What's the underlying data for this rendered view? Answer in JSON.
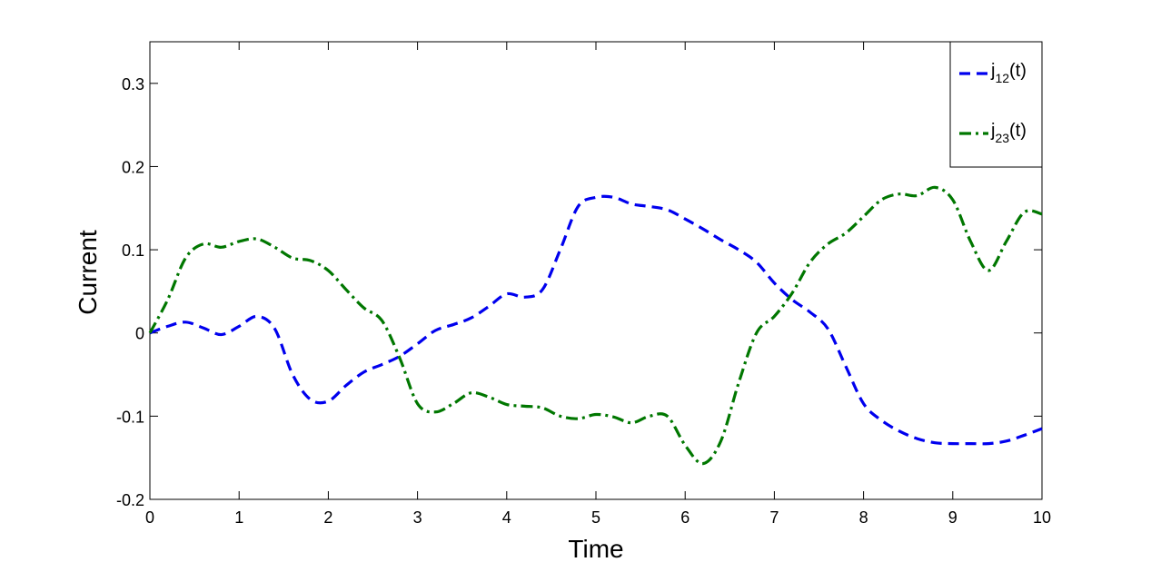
{
  "chart_data": {
    "type": "line",
    "title": "",
    "xlabel": "Time",
    "ylabel": "Current",
    "xlim": [
      0,
      10
    ],
    "ylim": [
      -0.2,
      0.35
    ],
    "xticks": [
      0,
      1,
      2,
      3,
      4,
      5,
      6,
      7,
      8,
      9,
      10
    ],
    "xtick_labels": [
      "0",
      "1",
      "2",
      "3",
      "4",
      "5",
      "6",
      "7",
      "8",
      "9",
      "10"
    ],
    "yticks": [
      -0.2,
      -0.1,
      0,
      0.1,
      0.2,
      0.3
    ],
    "ytick_labels": [
      "-0.2",
      "-0.1",
      "0",
      "0.1",
      "0.2",
      "0.3"
    ],
    "grid": false,
    "legend_position": "top-right",
    "series": [
      {
        "name": "j12(t)",
        "legend_main": "j",
        "legend_sub": "12",
        "legend_suffix": "(t)",
        "color": "#0000ee",
        "dash": "dashed",
        "x": [
          0,
          0.2,
          0.4,
          0.6,
          0.8,
          1.0,
          1.2,
          1.4,
          1.6,
          1.8,
          2.0,
          2.2,
          2.4,
          2.6,
          2.8,
          3.0,
          3.2,
          3.4,
          3.6,
          3.8,
          4.0,
          4.2,
          4.4,
          4.6,
          4.8,
          5.0,
          5.2,
          5.4,
          5.6,
          5.8,
          6.0,
          6.2,
          6.4,
          6.6,
          6.8,
          7.0,
          7.2,
          7.4,
          7.6,
          7.8,
          8.0,
          8.2,
          8.4,
          8.6,
          8.8,
          9.0,
          9.2,
          9.4,
          9.6,
          9.8,
          10.0
        ],
        "y": [
          0.0,
          0.008,
          0.013,
          0.006,
          -0.002,
          0.008,
          0.02,
          0.005,
          -0.05,
          -0.08,
          -0.082,
          -0.063,
          -0.047,
          -0.038,
          -0.028,
          -0.013,
          0.003,
          0.01,
          0.018,
          0.032,
          0.047,
          0.043,
          0.052,
          0.1,
          0.152,
          0.163,
          0.163,
          0.155,
          0.152,
          0.148,
          0.137,
          0.125,
          0.112,
          0.1,
          0.085,
          0.06,
          0.04,
          0.025,
          0.005,
          -0.04,
          -0.085,
          -0.105,
          -0.118,
          -0.127,
          -0.132,
          -0.133,
          -0.133,
          -0.133,
          -0.13,
          -0.123,
          -0.115
        ]
      },
      {
        "name": "j23(t)",
        "legend_main": "j",
        "legend_sub": "23",
        "legend_suffix": "(t)",
        "color": "#007700",
        "dash": "dash-dot",
        "x": [
          0,
          0.2,
          0.4,
          0.6,
          0.8,
          1.0,
          1.2,
          1.4,
          1.6,
          1.8,
          2.0,
          2.2,
          2.4,
          2.6,
          2.8,
          3.0,
          3.2,
          3.4,
          3.6,
          3.8,
          4.0,
          4.2,
          4.4,
          4.6,
          4.8,
          5.0,
          5.2,
          5.4,
          5.6,
          5.8,
          6.0,
          6.2,
          6.4,
          6.6,
          6.8,
          7.0,
          7.2,
          7.4,
          7.6,
          7.8,
          8.0,
          8.2,
          8.4,
          8.6,
          8.8,
          9.0,
          9.2,
          9.4,
          9.6,
          9.8,
          10.0
        ],
        "y": [
          0.0,
          0.04,
          0.09,
          0.107,
          0.103,
          0.11,
          0.113,
          0.103,
          0.09,
          0.087,
          0.075,
          0.052,
          0.03,
          0.015,
          -0.03,
          -0.085,
          -0.095,
          -0.085,
          -0.072,
          -0.077,
          -0.086,
          -0.088,
          -0.09,
          -0.1,
          -0.103,
          -0.098,
          -0.101,
          -0.108,
          -0.1,
          -0.1,
          -0.135,
          -0.157,
          -0.13,
          -0.06,
          0.0,
          0.02,
          0.048,
          0.085,
          0.107,
          0.12,
          0.14,
          0.16,
          0.167,
          0.165,
          0.175,
          0.16,
          0.11,
          0.075,
          0.11,
          0.145,
          0.143
        ]
      }
    ]
  }
}
